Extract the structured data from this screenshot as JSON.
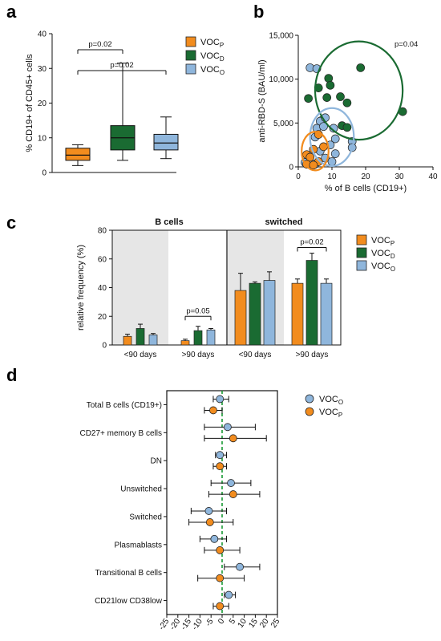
{
  "colors": {
    "P": "#f28c1e",
    "D": "#1a6b32",
    "O": "#8fb6dc",
    "median_line": "#1a9a35"
  },
  "panels": {
    "a": {
      "letter": "a"
    },
    "b": {
      "letter": "b"
    },
    "c": {
      "letter": "c"
    },
    "d": {
      "letter": "d"
    }
  },
  "chart_data": [
    {
      "panel": "a",
      "type": "box",
      "ylabel": "% CD19+ of CD45+ cells",
      "ylim": [
        0,
        40
      ],
      "yticks": [
        "0",
        "10",
        "20",
        "30",
        "40"
      ],
      "groups": [
        {
          "key": "P",
          "min": 2,
          "q1": 3.5,
          "median": 5,
          "q3": 7,
          "max": 8
        },
        {
          "key": "D",
          "min": 3.5,
          "q1": 6.5,
          "median": 10,
          "q3": 13.5,
          "max": 31.5
        },
        {
          "key": "O",
          "min": 4,
          "q1": 6.5,
          "median": 8.5,
          "q3": 11,
          "max": 16
        }
      ],
      "legend": [
        {
          "key": "P",
          "main": "VOC",
          "sub": "P"
        },
        {
          "key": "D",
          "main": "VOC",
          "sub": "D"
        },
        {
          "key": "O",
          "main": "VOC",
          "sub": "O"
        }
      ],
      "brackets": [
        {
          "from": 0,
          "to": 1,
          "label": "p=0.02"
        },
        {
          "from": 0,
          "to": 2,
          "label": "p=0.02"
        }
      ]
    },
    {
      "panel": "b",
      "type": "scatter",
      "xlabel": "% of B cells (CD19+)",
      "ylabel": "anti-RBD-S (BAU/ml)",
      "xlim": [
        0,
        40
      ],
      "ylim": [
        0,
        15000
      ],
      "xticks": [
        "0",
        "10",
        "20",
        "30",
        "40"
      ],
      "yticks": [
        "0",
        "5,000",
        "10,000",
        "15,000"
      ],
      "annotation": "p=0.04",
      "series": [
        {
          "key": "D",
          "points": [
            [
              18.5,
              11300
            ],
            [
              9,
              10100
            ],
            [
              9.5,
              9300
            ],
            [
              6,
              9000
            ],
            [
              12.5,
              8000
            ],
            [
              8.5,
              7900
            ],
            [
              3,
              7800
            ],
            [
              14.5,
              7300
            ],
            [
              31,
              6300
            ],
            [
              7,
              5300
            ],
            [
              13,
              4700
            ],
            [
              14.5,
              4500
            ]
          ]
        },
        {
          "key": "O",
          "points": [
            [
              3.5,
              11300
            ],
            [
              5.5,
              11200
            ],
            [
              6.5,
              5200
            ],
            [
              8,
              5600
            ],
            [
              5.5,
              4400
            ],
            [
              7.5,
              4600
            ],
            [
              10.5,
              4400
            ],
            [
              16,
              2900
            ],
            [
              16,
              2200
            ],
            [
              11,
              3200
            ],
            [
              5,
              3400
            ],
            [
              9.5,
              2500
            ],
            [
              6.5,
              1800
            ],
            [
              11,
              1500
            ],
            [
              8,
              1000
            ],
            [
              10,
              600
            ],
            [
              2,
              500
            ],
            [
              5,
              300
            ]
          ]
        },
        {
          "key": "P",
          "points": [
            [
              6,
              3700
            ],
            [
              7.5,
              2300
            ],
            [
              4.5,
              2000
            ],
            [
              2.5,
              1400
            ],
            [
              3.5,
              1100
            ],
            [
              6,
              600
            ],
            [
              2.5,
              300
            ],
            [
              4.5,
              200
            ]
          ]
        }
      ],
      "ellipses": [
        {
          "key": "D",
          "cx": 18,
          "cy": 8700,
          "rx": 13,
          "ry": 5600
        },
        {
          "key": "O",
          "cx": 10,
          "cy": 3400,
          "rx": 6.5,
          "ry": 3300
        },
        {
          "key": "P",
          "cx": 5,
          "cy": 1800,
          "rx": 4,
          "ry": 2200
        }
      ]
    },
    {
      "panel": "c",
      "type": "bar",
      "ylabel": "relative frequency (%)",
      "ylim": [
        0,
        80
      ],
      "yticks": [
        "0",
        "20",
        "40",
        "60",
        "80"
      ],
      "headers": [
        "B cells",
        "switched"
      ],
      "categories": [
        "<90  days",
        ">90  days",
        "<90  days",
        ">90  days"
      ],
      "series": [
        {
          "key": "P",
          "values": [
            6,
            3,
            38,
            43
          ],
          "errors": [
            1.5,
            1,
            12,
            3
          ]
        },
        {
          "key": "D",
          "values": [
            11.5,
            10,
            43,
            59
          ],
          "errors": [
            3,
            3,
            1,
            5
          ]
        },
        {
          "key": "O",
          "values": [
            7,
            10.5,
            45,
            43
          ],
          "errors": [
            1,
            1,
            6,
            3
          ]
        }
      ],
      "legend": [
        {
          "key": "P",
          "main": "VOC",
          "sub": "P"
        },
        {
          "key": "D",
          "main": "VOC",
          "sub": "D"
        },
        {
          "key": "O",
          "main": "VOC",
          "sub": "O"
        }
      ],
      "brackets": [
        {
          "group": 1,
          "label": "p=0.05"
        },
        {
          "group": 3,
          "label": "p=0.02"
        }
      ]
    },
    {
      "panel": "d",
      "type": "forest",
      "xlim": [
        -25,
        25
      ],
      "xticks": [
        "-25",
        "-20",
        "-15",
        "-10",
        "-5",
        "0",
        "5",
        "10",
        "15",
        "20",
        "25"
      ],
      "categories": [
        "Total B cells (CD19+)",
        "CD27+ memory B cells",
        "DN",
        "Unswitched",
        "Switched",
        "Plasmablasts",
        "Transitional B cells",
        "CD21low CD38low"
      ],
      "legend": [
        {
          "key": "O",
          "main": "VOC",
          "sub": "O"
        },
        {
          "key": "P",
          "main": "VOC",
          "sub": "P"
        }
      ],
      "series": [
        {
          "key": "O",
          "values": [
            -1,
            2.5,
            -1,
            4,
            -6,
            -3.5,
            8,
            3
          ],
          "lower": [
            -4,
            -8,
            -3,
            -5,
            -14,
            -10,
            1,
            1
          ],
          "upper": [
            3,
            15,
            2,
            13,
            2,
            2,
            17,
            6
          ]
        },
        {
          "key": "P",
          "values": [
            -4,
            5,
            -1,
            5,
            -5.5,
            -1,
            -1,
            -1
          ],
          "lower": [
            -8,
            -8,
            -4,
            -6,
            -15,
            -8,
            -11,
            -4
          ],
          "upper": [
            0,
            20,
            2,
            17,
            5,
            8,
            10,
            3
          ]
        }
      ]
    }
  ]
}
